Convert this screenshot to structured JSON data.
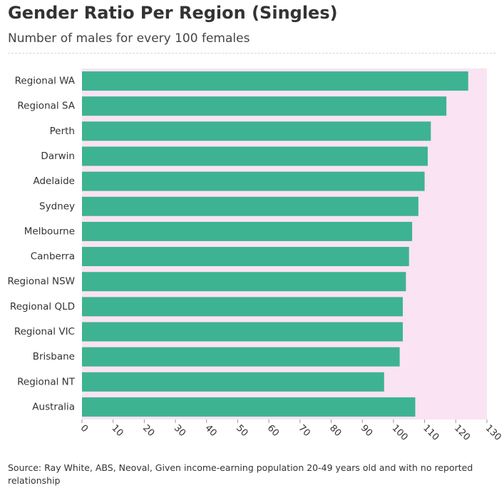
{
  "title": "Gender Ratio Per Region (Singles)",
  "subtitle": "Number of males for every 100 females",
  "source": "Source: Ray White, ABS, Neoval, Given income-earning population 20-49 years old and with no reported relationship",
  "chart_data": {
    "type": "bar",
    "orientation": "horizontal",
    "categories": [
      "Regional WA",
      "Regional SA",
      "Perth",
      "Darwin",
      "Adelaide",
      "Sydney",
      "Melbourne",
      "Canberra",
      "Regional NSW",
      "Regional QLD",
      "Regional VIC",
      "Brisbane",
      "Regional NT",
      "Australia"
    ],
    "values": [
      124,
      117,
      112,
      111,
      110,
      108,
      106,
      105,
      104,
      103,
      103,
      102,
      97,
      107
    ],
    "xlim": [
      0,
      130
    ],
    "xticks": [
      "0",
      "10",
      "20",
      "30",
      "40",
      "50",
      "60",
      "70",
      "80",
      "90",
      "100",
      "110",
      "120",
      "130"
    ],
    "xlabel": "",
    "ylabel": "",
    "bar_color": "#3db391",
    "background_color": "#fae3f3",
    "grid": false
  }
}
